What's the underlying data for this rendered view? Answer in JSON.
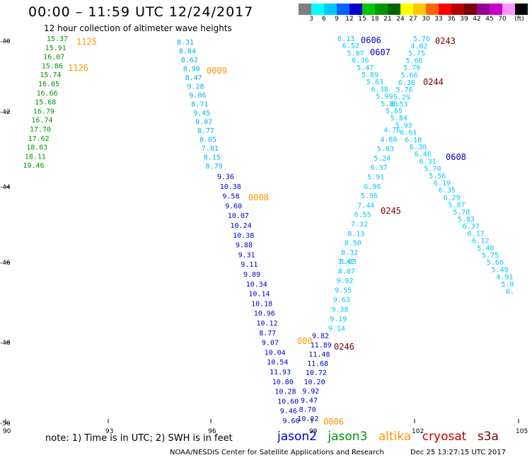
{
  "header": {
    "title": "00:00 – 11:59 UTC 12/24/2017",
    "subtitle": "12 hour collection of altimeter wave heights"
  },
  "colorbar": {
    "unit": "(ft)",
    "labels": [
      "3",
      "6",
      "9",
      "12",
      "15",
      "18",
      "21",
      "24",
      "27",
      "30",
      "33",
      "36",
      "39",
      "42",
      "45",
      "70"
    ],
    "colors": [
      "#7f7f7f",
      "#00ffff",
      "#00c8ff",
      "#0064ff",
      "#0000c8",
      "#00c800",
      "#009600",
      "#006400",
      "#ffff00",
      "#ffc800",
      "#ff6400",
      "#ff0000",
      "#b40000",
      "#780000",
      "#960096",
      "#c800c8",
      "#ff96ff",
      "#000000"
    ]
  },
  "axes": {
    "lon_labels": [
      "90",
      "93",
      "96",
      "99",
      "102",
      "105"
    ],
    "lat_labels": [
      "-40",
      "-42",
      "-44",
      "-46",
      "-48",
      "-50"
    ]
  },
  "satellites": {
    "jason2": {
      "name": "jason2",
      "color": "#0000c8"
    },
    "jason3": {
      "name": "jason3",
      "color": "#009600"
    },
    "altika": {
      "name": "altika",
      "color": "#ff9600"
    },
    "cryosat": {
      "name": "cryosat",
      "color": "#c80000"
    },
    "s3a": {
      "name": "s3a",
      "color": "#780000"
    }
  },
  "tracks": [
    {
      "satellite": "jason3",
      "color": "#009600",
      "values": [
        "15.37",
        "15.91",
        "16.07",
        "15.86",
        "15.74",
        "16.05",
        "16.66",
        "15.68",
        "16.79",
        "16.74",
        "17.70",
        "17.62",
        "18.03",
        "18.11",
        "19.46"
      ]
    },
    {
      "satellite": "jason2-north",
      "color": "#00b4e6",
      "values": [
        "8.31",
        "8.84",
        "8.62",
        "8.90",
        "8.47",
        "9.28",
        "9.06",
        "8.71",
        "9.45",
        "9.07",
        "8.77",
        "8.85",
        "7.81",
        "8.15",
        "8.79"
      ]
    },
    {
      "satellite": "jason2-south",
      "color": "#0000c8",
      "values": [
        "9.36",
        "10.38",
        "9.58",
        "9.60",
        "10.07",
        "10.24",
        "10.38",
        "9.88",
        "9.31",
        "9.11",
        "9.89",
        "10.34",
        "10.14",
        "10.18",
        "10.96",
        "10.12",
        "8.77",
        "9.07",
        "10.04",
        "10.54",
        "11.93",
        "10.80",
        "10.28",
        "10.60",
        "9.46",
        "9.60"
      ]
    },
    {
      "satellite": "jason2-ascending",
      "color": "#0000c8",
      "values": [
        "9.82",
        "11.89",
        "11.48",
        "11.68",
        "10.72",
        "10.20",
        "9.92",
        "9.47",
        "8.70",
        "10.02"
      ]
    },
    {
      "satellite": "s3a-ascending",
      "color": "#00c8ff",
      "values": [
        "8.03",
        "8.07",
        "9.92",
        "9.55",
        "9.63",
        "9.38",
        "9.19",
        "9.14"
      ]
    },
    {
      "satellite": "s3a-ascending-mid",
      "color": "#00c8ff",
      "values": [
        "4.76",
        "4.80",
        "5.63",
        "5.24",
        "6.37",
        "5.91",
        "6.96",
        "5.96",
        "7.44",
        "6.55",
        "7.32",
        "8.13",
        "8.50",
        "8.32",
        "7.47"
      ]
    },
    {
      "satellite": "s3a-descending",
      "color": "#00c8ff",
      "values": [
        "6.13",
        "6.52",
        "5.87",
        "6.36",
        "5.47",
        "5.89",
        "5.63",
        "6.38",
        "5.99",
        "5.80",
        "5.65",
        "5.84",
        "5.93",
        "6.61",
        "6.18",
        "6.30",
        "6.46",
        "6.31",
        "5.70",
        "5.56",
        "6.19",
        "6.35",
        "6.29",
        "5.87",
        "5.78",
        "5.83",
        "6.37",
        "6.17",
        "6.12",
        "5.40",
        "5.75",
        "5.66",
        "5.49",
        "4.91",
        "5.0",
        "6."
      ]
    },
    {
      "satellite": "s3a-cross",
      "color": "#00c8ff",
      "values": [
        "5.76",
        "4.02",
        "5.75",
        "5.66",
        "5.79",
        "5.66",
        "6.36",
        "5.76",
        "5.29",
        "6.53"
      ]
    }
  ],
  "time_labels": [
    {
      "text": "1125",
      "color": "#ff9600"
    },
    {
      "text": "1126",
      "color": "#ff9600"
    },
    {
      "text": "0009",
      "color": "#ff9600"
    },
    {
      "text": "0008",
      "color": "#ff9600"
    },
    {
      "text": "0006",
      "color": "#ff9600"
    },
    {
      "text": "000",
      "color": "#ff9600"
    },
    {
      "text": "0606",
      "color": "#0000c8"
    },
    {
      "text": "0607",
      "color": "#0000c8"
    },
    {
      "text": "0608",
      "color": "#0000c8"
    },
    {
      "text": "0243",
      "color": "#780000"
    },
    {
      "text": "0244",
      "color": "#780000"
    },
    {
      "text": "0245",
      "color": "#780000"
    },
    {
      "text": "0246",
      "color": "#780000"
    }
  ],
  "footer": {
    "note": "note:  1) Time is in UTC;  2) SWH is in feet",
    "credit": "NOAA/NESDIS Center for Satellite Applications and Research",
    "stamp": "Dec 25 13:27:15 UTC 2017"
  }
}
